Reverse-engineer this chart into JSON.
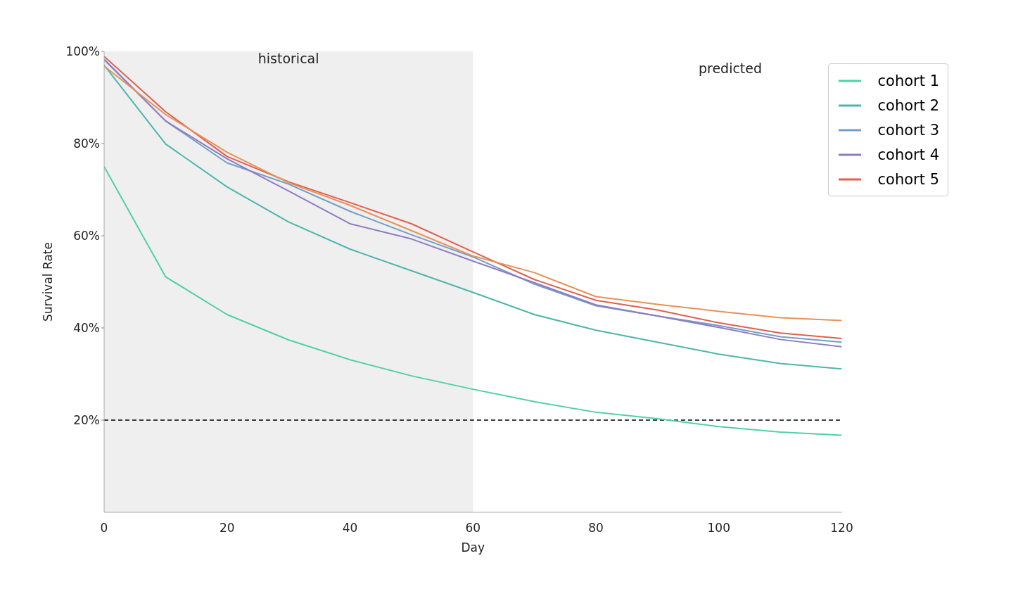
{
  "chart_data": {
    "type": "line",
    "xlabel": "Day",
    "ylabel": "Survival Rate",
    "x": [
      0,
      10,
      20,
      30,
      40,
      50,
      60,
      70,
      80,
      90,
      100,
      110,
      120
    ],
    "series": [
      {
        "name": "cohort 1",
        "color": "#4fd1a5",
        "values": [
          75,
          51.1,
          42.9,
          37.4,
          33.1,
          29.6,
          26.7,
          24.0,
          21.7,
          20.3,
          18.6,
          17.4,
          16.7
        ]
      },
      {
        "name": "cohort 2",
        "color": "#4db6ac",
        "values": [
          97,
          79.9,
          70.6,
          63.0,
          57.1,
          52.4,
          47.7,
          42.9,
          39.5,
          36.9,
          34.3,
          32.3,
          31.1
        ]
      },
      {
        "name": "cohort 3",
        "color": "#6f9fc7",
        "values": [
          98.3,
          84.9,
          75.8,
          71.2,
          65.3,
          60.2,
          55.4,
          49.5,
          44.8,
          42.6,
          40.5,
          38.1,
          36.9
        ]
      },
      {
        "name": "cohort 4",
        "color": "#8e7cc3",
        "values": [
          98.2,
          84.9,
          76.7,
          69.7,
          62.6,
          59.3,
          54.5,
          49.8,
          45.0,
          42.6,
          40.1,
          37.5,
          35.9
        ]
      },
      {
        "name": "cohort 5",
        "color": "#e0604e",
        "values": [
          98.9,
          86.9,
          77.2,
          71.7,
          67.2,
          62.6,
          56.5,
          50.5,
          46.0,
          43.9,
          41.1,
          38.9,
          37.7
        ]
      },
      {
        "color": "#e8915a",
        "values": [
          96.8,
          86.3,
          78.1,
          71.5,
          66.6,
          61.1,
          55.6,
          52.0,
          46.8,
          45.1,
          43.6,
          42.2,
          41.6
        ]
      }
    ],
    "xlim": [
      0,
      120
    ],
    "xticks": [
      0,
      20,
      40,
      60,
      80,
      100,
      120
    ],
    "ylim": [
      0,
      100
    ],
    "yticks": [
      {
        "value": 20,
        "label": "20%"
      },
      {
        "value": 40,
        "label": "40%"
      },
      {
        "value": 60,
        "label": "60%"
      },
      {
        "value": 80,
        "label": "80%"
      },
      {
        "value": 100,
        "label": "100%"
      }
    ],
    "bands": [
      {
        "axis": "x",
        "from": 0,
        "to": 60,
        "label": "historical",
        "color": "#efefef"
      }
    ],
    "annotations": [
      "predicted"
    ],
    "ref_lines": [
      {
        "axis": "y",
        "value": 20,
        "color": "#000000",
        "line_style": "dashed"
      }
    ],
    "grid": false,
    "legend": "top right",
    "line_style": "solid",
    "marker": "none"
  }
}
